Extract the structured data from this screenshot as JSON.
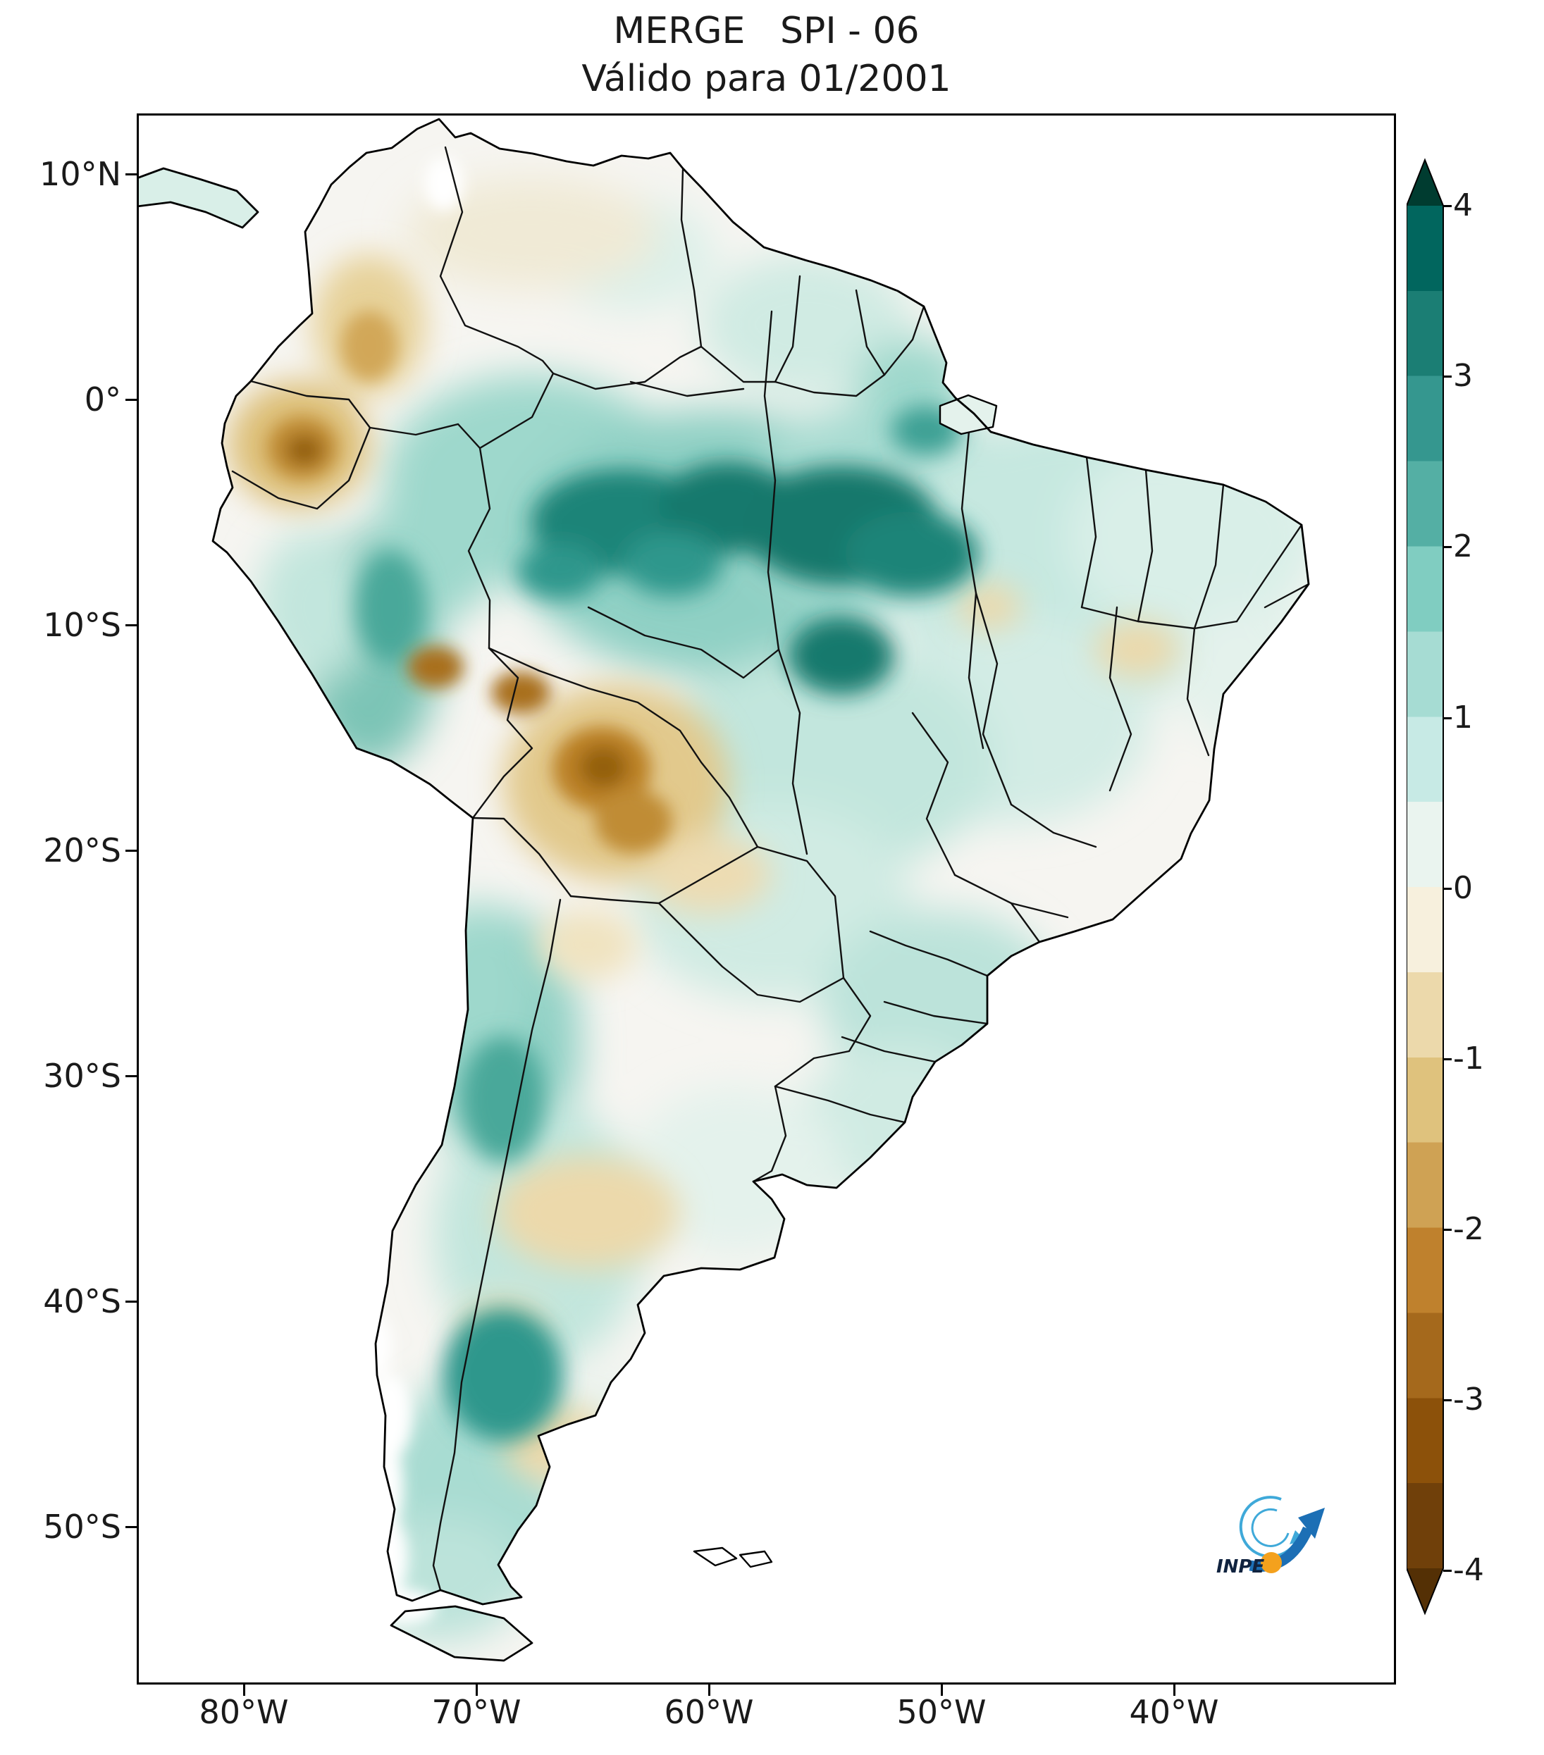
{
  "title": "MERGE   SPI - 06",
  "subtitle": "Válido para 01/2001",
  "axes": {
    "y_ticks": [
      "10°N",
      "0°",
      "10°S",
      "20°S",
      "30°S",
      "40°S",
      "50°S"
    ],
    "x_ticks": [
      "80°W",
      "70°W",
      "60°W",
      "50°W",
      "40°W"
    ]
  },
  "colorbar": {
    "tick_labels": [
      "4",
      "3",
      "2",
      "1",
      "0",
      "-1",
      "-2",
      "-3",
      "-4"
    ],
    "extend_over_color": "#003c30",
    "extend_under_color": "#543005",
    "segments_top_to_bottom": [
      "#01665e",
      "#1b7e74",
      "#35978f",
      "#54afa4",
      "#80cdc1",
      "#a6dcd3",
      "#c7eae5",
      "#eaf4ef",
      "#f7f0dd",
      "#ecd9ab",
      "#dfc27d",
      "#cfa254",
      "#bf812d",
      "#a5691c",
      "#8c510a",
      "#70400a"
    ]
  },
  "logo": {
    "label": "INPE",
    "accent_blue": "#1c6fb5",
    "light_blue": "#3fa9d9",
    "orange": "#f4a11d"
  },
  "chart_data": {
    "type": "heatmap",
    "title": "MERGE   SPI - 06",
    "subtitle": "Válido para 01/2001",
    "variable": "SPI-06 (6-month Standardized Precipitation Index)",
    "region": "South America",
    "x_axis": {
      "ticks": [
        "80°W",
        "70°W",
        "60°W",
        "50°W",
        "40°W"
      ]
    },
    "y_axis": {
      "ticks": [
        "10°N",
        "0°",
        "10°S",
        "20°S",
        "30°S",
        "40°S",
        "50°S"
      ]
    },
    "colorbar": {
      "range": [
        -4,
        4
      ],
      "tick_values": [
        4,
        3,
        2,
        1,
        0,
        -1,
        -2,
        -3,
        -4
      ],
      "colormap": "brown-white-teal (BrBG)",
      "extend": "both"
    },
    "notable_anomalies": [
      {
        "area": "central Amazon (5-9S, 55-62W)",
        "spi": 3
      },
      {
        "area": "eastern Amazon / Para (5-9S, 49-54W)",
        "spi": 3
      },
      {
        "area": "Bolivian lowlands (13-19S, 61-67W)",
        "spi": -2
      },
      {
        "area": "Ecuador / northern Peru (0-3S, 76-80W)",
        "spi": -2
      },
      {
        "area": "NW Venezuela-Colombia border (2-5N, 71-74W)",
        "spi": -1
      },
      {
        "area": "western Patagonia (42-45S, 68-71W)",
        "spi": 2
      },
      {
        "area": "central Argentina (33-37S, 62-67W)",
        "spi": -1
      },
      {
        "area": "Peruvian Andes / NW Argentina",
        "spi": 1.5
      },
      {
        "area": "northeastern Brazil coast",
        "spi": 0.5
      }
    ]
  }
}
